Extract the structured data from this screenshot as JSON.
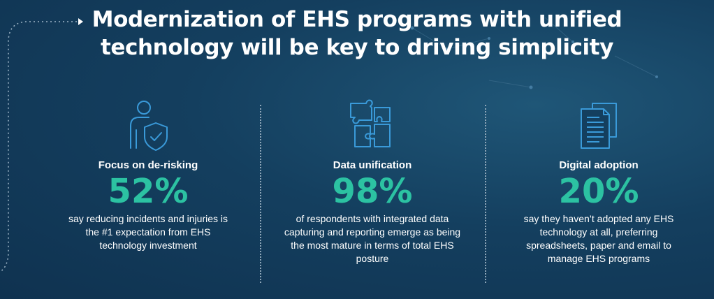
{
  "title": {
    "line1": "Modernization of EHS programs with unified",
    "line2": "technology will be key to driving simplicity"
  },
  "columns": [
    {
      "icon": "person-shield-icon",
      "heading": "Focus on de-risking",
      "stat": "52%",
      "desc": "say reducing incidents and injuries is the #1 expectation from EHS technology investment"
    },
    {
      "icon": "puzzle-icon",
      "heading": "Data unification",
      "stat": "98%",
      "desc": "of respondents with integrated data capturing and reporting emerge as being the most mature in terms of total EHS posture"
    },
    {
      "icon": "documents-icon",
      "heading": "Digital adoption",
      "stat": "20%",
      "desc": "say they haven’t adopted any EHS technology at all, preferring spreadsheets, paper and email to manage EHS programs"
    }
  ],
  "colors": {
    "accent": "#2cc2a2",
    "icon_stroke": "#3a9ad9",
    "background": "#143f5f"
  }
}
